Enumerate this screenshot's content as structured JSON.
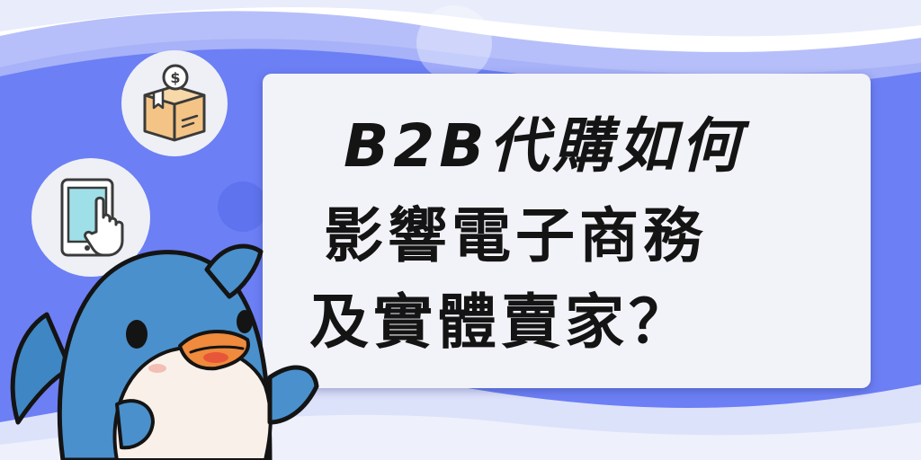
{
  "title": {
    "line1": "B2B代購如何",
    "line2": "影響電子商務",
    "line3": "及實體賣家？"
  },
  "icons": {
    "top": "package-dollar-icon",
    "bottom": "tablet-tap-icon"
  },
  "mascot": "dolphin-mascot",
  "colors": {
    "background_blue": "#6c7ff5",
    "light_wave": "#e6e9fb",
    "card": "#f2f3f8",
    "title_text": "#141414",
    "dolphin_blue": "#4a90cc",
    "dolphin_belly": "#faf0ea",
    "beak_orange": "#f08a3c"
  }
}
